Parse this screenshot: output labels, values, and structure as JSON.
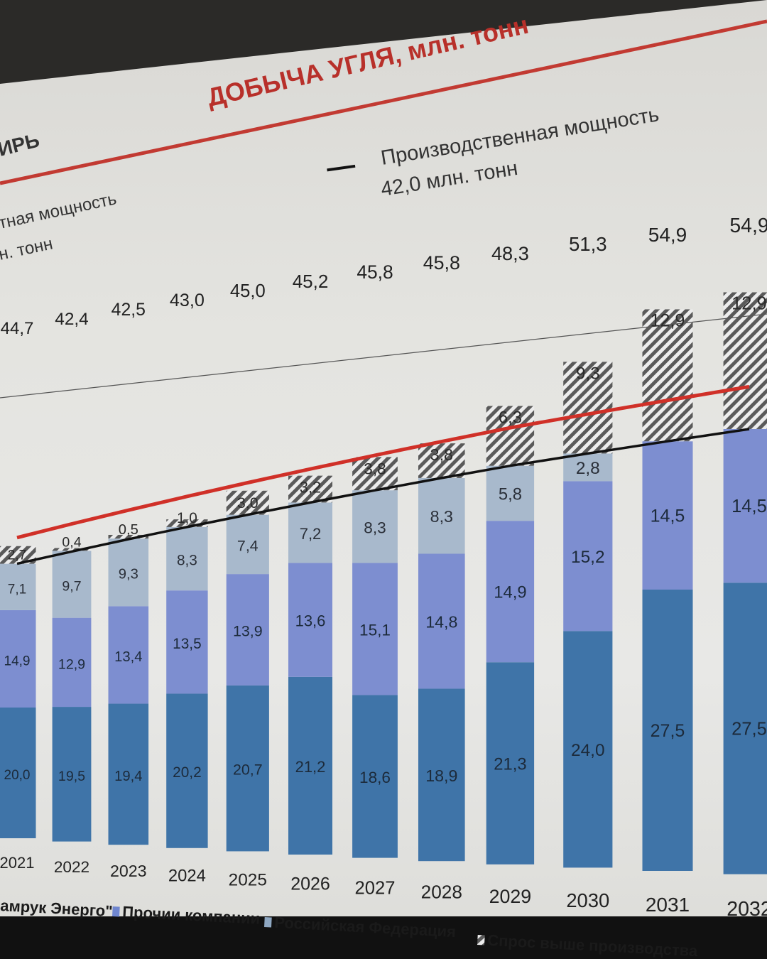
{
  "slide": {
    "title": "ДОБЫЧА УГЛЯ, млн. тонн",
    "left_header_fragment": "ИРЬ",
    "capacity_left_line1": "тная мощность",
    "capacity_left_line2": "н. тонн",
    "capacity_right_line1": "Производственная мощность",
    "capacity_right_line2": "42,0 млн. тонн",
    "capacity_right_marker": "—"
  },
  "legend": [
    {
      "label": "амрук Энерго\"",
      "color": "#3c6da3"
    },
    {
      "label": "Прочии компании",
      "color": "#6f86cf"
    },
    {
      "label": "Российская Федерация",
      "color": "#8fa8c2"
    },
    {
      "label": "Спрос выше производства",
      "color": "hatch"
    }
  ],
  "colors": {
    "samruk": "#3f74a8",
    "other": "#7d8ed0",
    "russia": "#a8b9cc",
    "excess_hatch_dark": "#555555",
    "excess_hatch_light": "#e8e8e8",
    "capacity_line_red": "#d03028",
    "capacity_line_black": "#111111",
    "title_red": "#b8302a"
  },
  "chart_data": {
    "type": "bar",
    "stacked": true,
    "title": "ДОБЫЧА УГЛЯ, млн. тонн",
    "categories": [
      "2021",
      "2022",
      "2023",
      "2024",
      "2025",
      "2026",
      "2027",
      "2028",
      "2029",
      "2030",
      "2031",
      "2032"
    ],
    "category_labels": [
      "2021",
      "2022",
      "2023",
      "2024",
      "2025",
      "2026",
      "2027",
      "2028",
      "2029",
      "2030",
      "2031",
      "2032"
    ],
    "series": [
      {
        "key": "samruk",
        "values": [
          20.0,
          19.5,
          19.4,
          20.2,
          20.7,
          21.2,
          18.6,
          18.9,
          21.3,
          24.0,
          27.5,
          27.5
        ],
        "labels": [
          "20,0",
          "19,5",
          "19,4",
          "20,2",
          "20,7",
          "21,2",
          "18,6",
          "18,9",
          "21,3",
          "24,0",
          "27,5",
          "27,5"
        ]
      },
      {
        "key": "other",
        "values": [
          14.9,
          12.9,
          13.4,
          13.5,
          13.9,
          13.6,
          15.1,
          14.8,
          14.9,
          15.2,
          14.5,
          14.5
        ],
        "labels": [
          "14,9",
          "12,9",
          "13,4",
          "13,5",
          "13,9",
          "13,6",
          "15,1",
          "14,8",
          "14,9",
          "15,2",
          "14,5",
          "14,5"
        ]
      },
      {
        "key": "russia",
        "values": [
          7.1,
          9.7,
          9.3,
          8.3,
          7.4,
          7.2,
          8.3,
          8.3,
          5.8,
          2.8,
          0,
          0
        ],
        "labels": [
          "7,1",
          "9,7",
          "9,3",
          "8,3",
          "7,4",
          "7,2",
          "8,3",
          "8,3",
          "5,8",
          "2,8",
          "",
          ""
        ]
      },
      {
        "key": "excess",
        "values": [
          2.7,
          0.4,
          0.5,
          1.0,
          3.0,
          3.2,
          3.8,
          3.8,
          6.3,
          9.3,
          12.9,
          12.9
        ],
        "labels": [
          "2,7",
          "0,4",
          "0,5",
          "1,0",
          "3,0",
          "3,2",
          "3,8",
          "3,8",
          "6,3",
          "9,3",
          "12,9",
          "12,9"
        ]
      }
    ],
    "totals": [
      44.7,
      42.4,
      42.5,
      43.0,
      45.0,
      45.2,
      45.8,
      45.8,
      48.3,
      51.3,
      54.9,
      54.9
    ],
    "total_labels": [
      "44,7",
      "42,4",
      "42,5",
      "43,0",
      "45,0",
      "45,2",
      "45,8",
      "45,8",
      "48,3",
      "51,3",
      "54,9",
      "54,9"
    ],
    "capacity_black": 42.0,
    "capacity_red": 46.0,
    "legend_position": "bottom"
  }
}
